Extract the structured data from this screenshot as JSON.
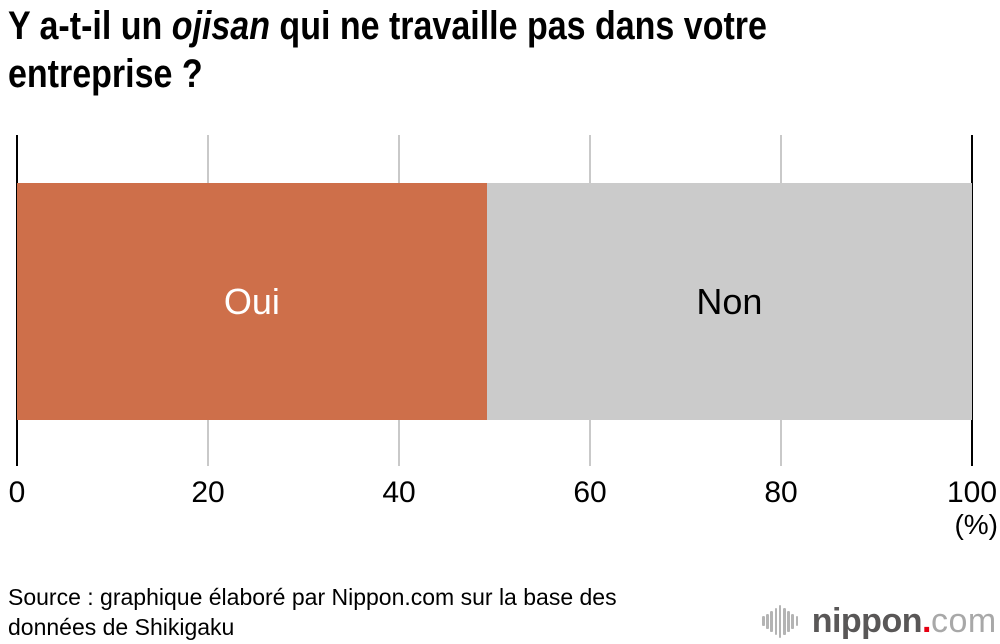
{
  "title": {
    "line1_part1": "Y a-t-il un ",
    "line1_italic": "ojisan",
    "line1_part2": " qui ne travaille pas dans votre",
    "line2": "entreprise ?"
  },
  "chart_data": {
    "type": "bar",
    "orientation": "horizontal",
    "stacked": true,
    "title": "Y a-t-il un ojisan qui ne travaille pas dans votre entreprise ?",
    "series": [
      {
        "name": "Oui",
        "value": 49.2,
        "color": "#ce6f4a",
        "label_color": "#ffffff"
      },
      {
        "name": "Non",
        "value": 50.8,
        "color": "#cbcbcb",
        "label_color": "#000000"
      }
    ],
    "xlim": [
      0,
      100
    ],
    "x_ticks": [
      0,
      20,
      40,
      60,
      80,
      100
    ],
    "x_unit": "(%)",
    "grid": true,
    "gridline_color": "#c9c9c9",
    "axis_color": "#000000",
    "legend_position": "none"
  },
  "source": {
    "line1": "Source : graphique élaboré par Nippon.com sur la base des",
    "line2": "données de Shikigaku"
  },
  "logo": {
    "brand": "nippon",
    "dot": ".",
    "tld": "com",
    "brand_color": "#595757",
    "dot_color": "#e60012",
    "tld_color": "#a8a8a8",
    "icon_color": "#b4b4b4",
    "icon": "soundwave-bars-icon"
  }
}
